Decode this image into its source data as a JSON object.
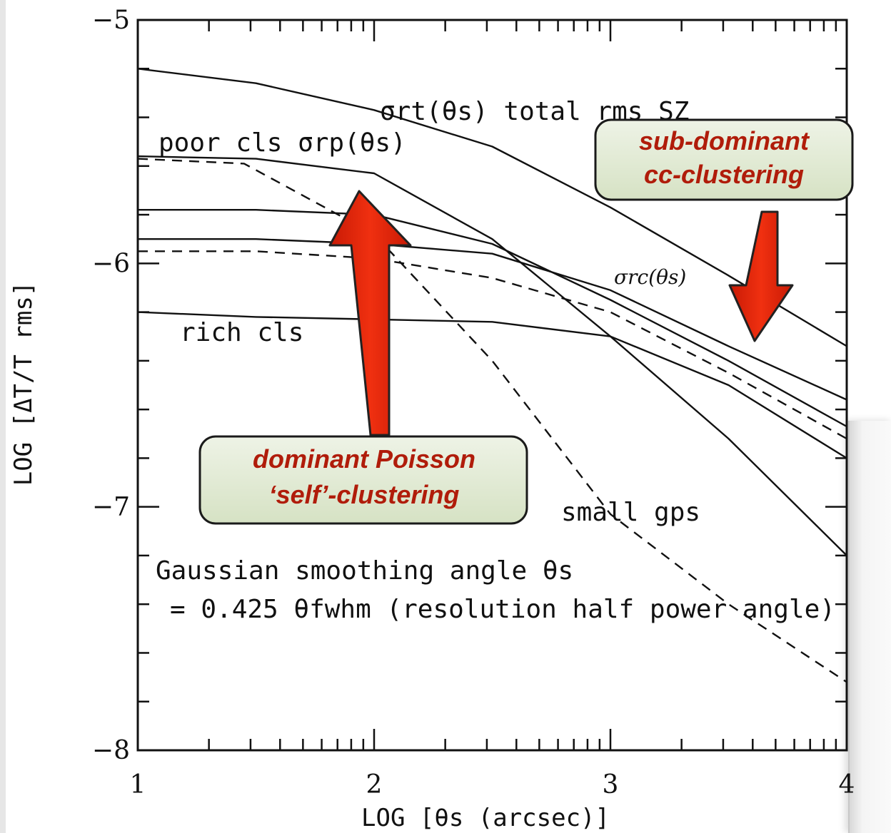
{
  "chart_data": {
    "type": "line",
    "xlabel": "LOG [θs (arcsec)]",
    "ylabel": "LOG [ΔT/T rms]",
    "xlim": [
      1,
      4
    ],
    "ylim": [
      -8,
      -5
    ],
    "x_ticks": [
      "1",
      "2",
      "3",
      "4"
    ],
    "y_ticks": [
      "−5",
      "−6",
      "−7",
      "−8"
    ],
    "grid": false,
    "series": [
      {
        "name": "σrt(θs) total rms SZ",
        "style": "solid",
        "points": [
          [
            1.0,
            -5.2
          ],
          [
            1.5,
            -5.26
          ],
          [
            2.0,
            -5.37
          ],
          [
            2.5,
            -5.52
          ],
          [
            3.0,
            -5.77
          ],
          [
            3.5,
            -6.05
          ],
          [
            4.0,
            -6.34
          ]
        ]
      },
      {
        "name": "poor cls σrp(θs)",
        "style": "solid",
        "points": [
          [
            1.0,
            -5.56
          ],
          [
            1.5,
            -5.57
          ],
          [
            2.0,
            -5.63
          ],
          [
            2.5,
            -5.9
          ],
          [
            3.0,
            -6.3
          ],
          [
            3.5,
            -6.72
          ],
          [
            4.0,
            -7.2
          ]
        ]
      },
      {
        "style": "dashed",
        "points": [
          [
            1.0,
            -5.57
          ],
          [
            1.45,
            -5.59
          ],
          [
            2.0,
            -5.88
          ],
          [
            2.5,
            -6.4
          ],
          [
            3.0,
            -7.03
          ],
          [
            3.5,
            -7.4
          ],
          [
            4.0,
            -7.72
          ]
        ]
      },
      {
        "style": "solid",
        "points": [
          [
            1.0,
            -5.78
          ],
          [
            1.5,
            -5.78
          ],
          [
            2.0,
            -5.8
          ],
          [
            2.5,
            -5.92
          ],
          [
            3.0,
            -6.15
          ],
          [
            3.5,
            -6.4
          ],
          [
            4.0,
            -6.67
          ]
        ]
      },
      {
        "name": "σrc(θs)",
        "style": "solid",
        "points": [
          [
            1.0,
            -5.9
          ],
          [
            1.5,
            -5.9
          ],
          [
            2.0,
            -5.92
          ],
          [
            2.5,
            -5.96
          ],
          [
            3.0,
            -6.11
          ],
          [
            3.5,
            -6.34
          ],
          [
            4.0,
            -6.56
          ]
        ]
      },
      {
        "style": "dashed",
        "points": [
          [
            1.0,
            -5.95
          ],
          [
            1.5,
            -5.95
          ],
          [
            2.0,
            -5.98
          ],
          [
            2.5,
            -6.06
          ],
          [
            3.0,
            -6.2
          ],
          [
            3.5,
            -6.45
          ],
          [
            4.0,
            -6.72
          ]
        ]
      },
      {
        "name": "rich cls",
        "style": "solid",
        "points": [
          [
            1.0,
            -6.2
          ],
          [
            1.5,
            -6.22
          ],
          [
            2.0,
            -6.23
          ],
          [
            2.5,
            -6.24
          ],
          [
            3.0,
            -6.3
          ],
          [
            3.5,
            -6.5
          ],
          [
            4.0,
            -6.8
          ]
        ]
      }
    ],
    "annotations": [
      {
        "text": "small gps",
        "x": 2.8,
        "y": -7.04
      },
      {
        "text": "Gaussian smoothing angle θs",
        "x": 1.07,
        "y": -7.27
      },
      {
        "text": "= 0.425 θfwhm (resolution half power angle)",
        "x": 1.15,
        "y": -7.43
      }
    ],
    "callouts": [
      {
        "line1": "sub-dominant",
        "line2": "cc-clustering"
      },
      {
        "line1": "dominant Poisson",
        "line2": "‘self’-clustering"
      }
    ]
  }
}
